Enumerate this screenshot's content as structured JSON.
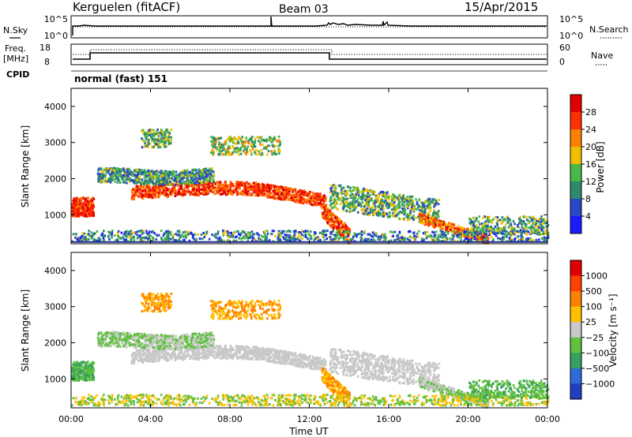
{
  "header": {
    "station": "Kerguelen (fitACF)",
    "beam": "Beam 03",
    "date": "15/Apr/2015"
  },
  "nsky_panel": {
    "left_label": "N.Sky",
    "left_ticks": [
      "10^5",
      "10^0"
    ],
    "right_ticks": [
      "10^5",
      "10^0"
    ],
    "right_label": "N.Search"
  },
  "freq_panel": {
    "label_line1": "Freq.",
    "label_line2": "[MHz]",
    "left_ticks": [
      "18",
      "8"
    ],
    "right_ticks": [
      "60",
      "0"
    ],
    "right_label": "Nave",
    "cpid_label": "CPID",
    "mode_text": "normal (fast) 151"
  },
  "chart_data": [
    {
      "type": "heatmap",
      "name": "power",
      "ylabel": "Slant Range [km]",
      "yticks": [
        "1000",
        "2000",
        "3000",
        "4000"
      ],
      "ylim": [
        200,
        4500
      ],
      "colorbar": {
        "label": "Power [dB]",
        "ticks": [
          "4",
          "8",
          "12",
          "16",
          "20",
          "24",
          "28"
        ],
        "range": [
          0,
          32
        ],
        "colors": [
          "#1a1aff",
          "#2848c8",
          "#2e8a6a",
          "#48b848",
          "#f0c000",
          "#ff8000",
          "#ff3000",
          "#e00000"
        ]
      }
    },
    {
      "type": "heatmap",
      "name": "velocity",
      "ylabel": "Slant Range [km]",
      "yticks": [
        "1000",
        "2000",
        "3000",
        "4000"
      ],
      "ylim": [
        200,
        4500
      ],
      "colorbar": {
        "label": "Velocity [m s⁻¹]",
        "ticks": [
          "1000",
          "500",
          "100",
          "25",
          "−25",
          "−100",
          "−500",
          "−1000"
        ],
        "colors": [
          "#2040c0",
          "#2e6ad8",
          "#38a060",
          "#60c040",
          "#c8c8c8",
          "#ffc000",
          "#ff8000",
          "#ff4000",
          "#e00000"
        ]
      }
    }
  ],
  "time_axis": {
    "label": "Time UT",
    "ticks": [
      "00:00",
      "04:00",
      "08:00",
      "12:00",
      "16:00",
      "20:00",
      "00:00"
    ]
  }
}
